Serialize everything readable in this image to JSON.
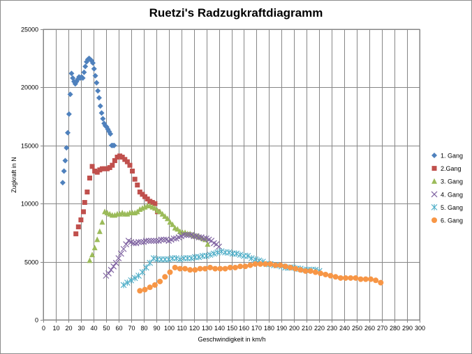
{
  "chart_data": {
    "type": "scatter",
    "title": "Ruetzi's Radzugkraftdiagramm",
    "xlabel": "Geschwindigkeit  in km/h",
    "ylabel": "Zugkraft in N",
    "xlim": [
      0,
      300
    ],
    "ylim": [
      0,
      25000
    ],
    "x_ticks": [
      0,
      10,
      20,
      30,
      40,
      50,
      60,
      70,
      80,
      90,
      100,
      110,
      120,
      130,
      140,
      150,
      160,
      170,
      180,
      190,
      200,
      210,
      220,
      230,
      240,
      250,
      260,
      270,
      280,
      290,
      300
    ],
    "y_ticks": [
      0,
      5000,
      10000,
      15000,
      20000,
      25000
    ],
    "grid": true,
    "legend_position": "right",
    "series": [
      {
        "name": "1. Gang",
        "color": "#4f81bd",
        "marker": "diamond",
        "x": [
          15.5,
          16.5,
          17.5,
          18.5,
          19.5,
          20.5,
          21.5,
          22.5,
          23.5,
          24.5,
          25.5,
          26.5,
          27.5,
          28.5,
          29.5,
          30.5,
          31.5,
          32.5,
          33.5,
          34.5,
          35.5,
          36.5,
          37.5,
          38.5,
          39.5,
          40.5,
          41.5,
          42.5,
          43.5,
          44.5,
          45.5,
          46.5,
          47.5,
          48.5,
          49.5,
          50.5,
          51.5,
          52.5,
          53.5,
          54.5,
          55.5,
          56.5
        ],
        "y": [
          11800,
          12800,
          13700,
          14800,
          16100,
          17700,
          19400,
          21200,
          20800,
          20500,
          20300,
          20500,
          20700,
          20900,
          20800,
          20900,
          20800,
          21300,
          21800,
          22200,
          22400,
          22500,
          22400,
          22300,
          22100,
          21600,
          21000,
          20400,
          19700,
          19100,
          18400,
          17800,
          17300,
          16900,
          16700,
          16600,
          16400,
          16200,
          16000,
          15000,
          15000,
          15000
        ]
      },
      {
        "name": "2.Gang",
        "color": "#c0504d",
        "marker": "square",
        "x": [
          26,
          28,
          30,
          32,
          33,
          35,
          37,
          39,
          41,
          43,
          45,
          47,
          49,
          51,
          53,
          55,
          57,
          59,
          61,
          63,
          65,
          67,
          69,
          71,
          73,
          75,
          77,
          79,
          81,
          83,
          85,
          87,
          89,
          91
        ],
        "y": [
          7400,
          8000,
          8600,
          9300,
          10100,
          11000,
          12200,
          13200,
          12800,
          12700,
          12900,
          13000,
          13000,
          13000,
          13100,
          13300,
          13700,
          14000,
          14100,
          14000,
          13800,
          13600,
          13300,
          12800,
          12100,
          11600,
          11000,
          10800,
          10600,
          10400,
          10200,
          10100,
          10000,
          9300
        ]
      },
      {
        "name": "3. Gang",
        "color": "#9bbb59",
        "marker": "triangle",
        "x": [
          37,
          39,
          41,
          43,
          45,
          47,
          49,
          51,
          53,
          55,
          57,
          59,
          61,
          63,
          65,
          67,
          69,
          71,
          73,
          75,
          77,
          79,
          81,
          83,
          85,
          87,
          89,
          91,
          93,
          95,
          97,
          99,
          101,
          103,
          105,
          107,
          109,
          111,
          113,
          115,
          117,
          119,
          121,
          123,
          125,
          127,
          129,
          131
        ],
        "y": [
          5100,
          5600,
          6200,
          6900,
          7600,
          8400,
          9300,
          9200,
          9100,
          9000,
          9000,
          9100,
          9100,
          9200,
          9100,
          9100,
          9200,
          9200,
          9200,
          9300,
          9500,
          9600,
          9700,
          9800,
          9800,
          9700,
          9600,
          9400,
          9300,
          9100,
          8900,
          8700,
          8400,
          8200,
          7900,
          7800,
          7600,
          7500,
          7500,
          7400,
          7400,
          7300,
          7200,
          7200,
          7100,
          7000,
          6900,
          6500
        ]
      },
      {
        "name": "4. Gang",
        "color": "#8064a2",
        "marker": "x",
        "x": [
          50,
          52,
          54,
          56,
          58,
          60,
          62,
          64,
          66,
          68,
          70,
          72,
          74,
          76,
          78,
          80,
          82,
          84,
          86,
          88,
          90,
          92,
          94,
          96,
          98,
          100,
          102,
          104,
          106,
          108,
          110,
          112,
          114,
          116,
          118,
          120,
          122,
          124,
          126,
          128,
          130,
          132,
          134,
          136,
          138,
          140
        ],
        "y": [
          3800,
          4000,
          4300,
          4600,
          4900,
          5300,
          5700,
          6100,
          6500,
          6800,
          6700,
          6600,
          6600,
          6700,
          6700,
          6700,
          6800,
          6800,
          6800,
          6800,
          6800,
          6800,
          6900,
          6900,
          6900,
          6800,
          6900,
          7000,
          7000,
          7100,
          7200,
          7300,
          7300,
          7300,
          7300,
          7200,
          7200,
          7100,
          7100,
          7000,
          7000,
          6900,
          6800,
          6600,
          6500,
          6300
        ]
      },
      {
        "name": "5. Gang",
        "color": "#4bacc6",
        "marker": "star",
        "x": [
          64,
          67,
          70,
          73,
          76,
          79,
          82,
          85,
          88,
          91,
          94,
          97,
          100,
          103,
          106,
          109,
          112,
          115,
          118,
          121,
          124,
          127,
          130,
          133,
          136,
          139,
          142,
          145,
          148,
          151,
          154,
          157,
          160,
          163,
          166,
          169,
          172,
          175,
          178,
          181,
          184,
          187,
          190,
          193,
          196,
          199,
          202,
          205,
          208,
          211,
          214,
          217,
          220
        ],
        "y": [
          3000,
          3200,
          3400,
          3600,
          3800,
          4100,
          4500,
          4900,
          5300,
          5200,
          5200,
          5200,
          5200,
          5300,
          5300,
          5200,
          5300,
          5300,
          5300,
          5400,
          5400,
          5500,
          5500,
          5600,
          5700,
          5800,
          5900,
          5800,
          5800,
          5700,
          5700,
          5600,
          5500,
          5500,
          5300,
          5200,
          5100,
          5000,
          4800,
          4800,
          4700,
          4700,
          4600,
          4500,
          4500,
          4500,
          4400,
          4400,
          4300,
          4300,
          4300,
          4300,
          4200
        ]
      },
      {
        "name": "6. Gang",
        "color": "#f79646",
        "marker": "circle",
        "x": [
          77,
          81,
          85,
          89,
          93,
          97,
          101,
          105,
          109,
          113,
          117,
          121,
          125,
          129,
          133,
          137,
          141,
          145,
          149,
          153,
          157,
          161,
          165,
          169,
          173,
          177,
          181,
          185,
          189,
          193,
          197,
          201,
          205,
          209,
          213,
          217,
          221,
          225,
          229,
          233,
          237,
          241,
          245,
          249,
          253,
          257,
          261,
          265,
          269
        ],
        "y": [
          2500,
          2600,
          2800,
          3000,
          3300,
          3700,
          4100,
          4500,
          4400,
          4400,
          4300,
          4300,
          4400,
          4400,
          4500,
          4400,
          4400,
          4400,
          4500,
          4500,
          4600,
          4600,
          4700,
          4800,
          4800,
          4800,
          4800,
          4700,
          4700,
          4600,
          4500,
          4400,
          4300,
          4200,
          4200,
          4100,
          4000,
          3900,
          3800,
          3700,
          3600,
          3600,
          3600,
          3600,
          3500,
          3500,
          3500,
          3400,
          3200
        ]
      }
    ]
  }
}
